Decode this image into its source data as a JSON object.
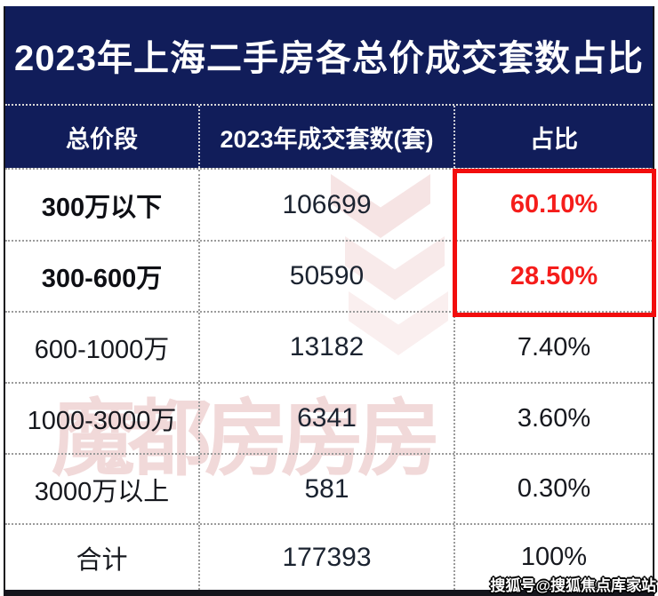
{
  "title": "2023年上海二手房各总价成交套数占比",
  "table": {
    "columns": [
      "总价段",
      "2023年成交套数(套)",
      "占比"
    ],
    "rows": [
      {
        "range": "300万以下",
        "count": "106699",
        "share": "60.10%"
      },
      {
        "range": "300-600万",
        "count": "50590",
        "share": "28.50%"
      },
      {
        "range": "600-1000万",
        "count": "13182",
        "share": "7.40%"
      },
      {
        "range": "1000-3000万",
        "count": "6341",
        "share": "3.60%"
      },
      {
        "range": "3000万以上",
        "count": "581",
        "share": "0.30%"
      },
      {
        "range": "合计",
        "count": "177393",
        "share": "100%"
      }
    ]
  },
  "watermarks": {
    "center_text": "魔都房房房",
    "bottom_right_text": "搜狐号@搜狐焦点库家站"
  },
  "colors": {
    "navy_header": "#111D5A",
    "highlight_red_text": "#F51D1B",
    "highlight_red_box": "#F20D0D",
    "body_text": "#16181E"
  },
  "chart_data": {
    "type": "table",
    "title": "2023年上海二手房各总价成交套数占比",
    "columns": [
      "总价段",
      "2023年成交套数(套)",
      "占比"
    ],
    "rows": [
      [
        "300万以下",
        106699,
        "60.10%"
      ],
      [
        "300-600万",
        50590,
        "28.50%"
      ],
      [
        "600-1000万",
        13182,
        "7.40%"
      ],
      [
        "1000-3000万",
        6341,
        "3.60%"
      ],
      [
        "3000万以上",
        581,
        "0.30%"
      ],
      [
        "合计",
        177393,
        "100%"
      ]
    ],
    "highlighted_rows": [
      0,
      1
    ],
    "highlight_note": "占比 cells of first two rows (60.10% and 28.50%) are shown in bold red and outlined with a red box"
  }
}
